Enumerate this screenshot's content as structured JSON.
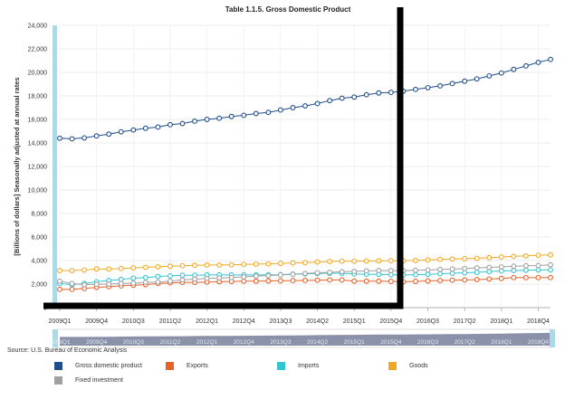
{
  "source": "Source: U.S. Bureau of Economic Analysis",
  "chart_data": {
    "type": "line",
    "title": "Table 1.1.5. Gross Domestic Product",
    "ylabel": "[Billions of dollars] Seasonally adjusted at annual rates",
    "xlabel": "",
    "ylim": [
      0,
      24000
    ],
    "y_ticks": [
      "0",
      "2,000",
      "4,000",
      "6,000",
      "8,000",
      "10,000",
      "12,000",
      "14,000",
      "16,000",
      "18,000",
      "20,000",
      "22,000",
      "24,000"
    ],
    "x_tick_labels": [
      "2009Q1",
      "2009Q4",
      "2010Q3",
      "2011Q2",
      "2012Q1",
      "2012Q4",
      "2013Q3",
      "2014Q2",
      "2015Q1",
      "2015Q4",
      "2016Q3",
      "2017Q2",
      "2018Q1",
      "2018Q4"
    ],
    "grid": true,
    "legend_position": "bottom",
    "navigator_labels": [
      "2009Q1",
      "2009Q4",
      "2010Q3",
      "2011Q2",
      "2012Q1",
      "2012Q4",
      "2013Q3",
      "2014Q2",
      "2015Q1",
      "2015Q4",
      "2016Q3",
      "2017Q2",
      "2018Q1",
      "2018Q4"
    ],
    "categories": [
      "2009Q1",
      "2009Q2",
      "2009Q3",
      "2009Q4",
      "2010Q1",
      "2010Q2",
      "2010Q3",
      "2010Q4",
      "2011Q1",
      "2011Q2",
      "2011Q3",
      "2011Q4",
      "2012Q1",
      "2012Q2",
      "2012Q3",
      "2012Q4",
      "2013Q1",
      "2013Q2",
      "2013Q3",
      "2013Q4",
      "2014Q1",
      "2014Q2",
      "2014Q3",
      "2014Q4",
      "2015Q1",
      "2015Q2",
      "2015Q3",
      "2015Q4",
      "2016Q1",
      "2016Q2",
      "2016Q3",
      "2016Q4",
      "2017Q1",
      "2017Q2",
      "2017Q3",
      "2017Q4",
      "2018Q1",
      "2018Q2",
      "2018Q3",
      "2018Q4",
      "2019Q1"
    ],
    "series": [
      {
        "name": "Gross domestic product",
        "color": "#1f4e8c",
        "values": [
          14400,
          14350,
          14430,
          14600,
          14750,
          14950,
          15100,
          15250,
          15350,
          15550,
          15650,
          15850,
          16000,
          16100,
          16250,
          16350,
          16500,
          16600,
          16800,
          17000,
          17150,
          17350,
          17600,
          17800,
          17900,
          18100,
          18250,
          18300,
          18400,
          18550,
          18700,
          18850,
          19050,
          19250,
          19450,
          19700,
          19950,
          20250,
          20550,
          20850,
          21100
        ]
      },
      {
        "name": "Exports",
        "color": "#e5622a",
        "values": [
          1550,
          1550,
          1620,
          1720,
          1780,
          1850,
          1900,
          1950,
          2050,
          2100,
          2150,
          2150,
          2180,
          2200,
          2220,
          2250,
          2250,
          2270,
          2280,
          2300,
          2310,
          2330,
          2350,
          2350,
          2250,
          2250,
          2250,
          2230,
          2200,
          2230,
          2270,
          2300,
          2330,
          2350,
          2380,
          2430,
          2480,
          2550,
          2550,
          2550,
          2560
        ]
      },
      {
        "name": "Imports",
        "color": "#35c4d4",
        "values": [
          2050,
          1950,
          2050,
          2200,
          2300,
          2400,
          2500,
          2550,
          2650,
          2700,
          2750,
          2750,
          2780,
          2780,
          2780,
          2780,
          2780,
          2790,
          2800,
          2850,
          2860,
          2900,
          2920,
          2920,
          2860,
          2840,
          2830,
          2800,
          2780,
          2800,
          2830,
          2880,
          2920,
          2960,
          3000,
          3060,
          3120,
          3150,
          3180,
          3200,
          3200
        ]
      },
      {
        "name": "Goods",
        "color": "#f2a922",
        "values": [
          3150,
          3150,
          3200,
          3280,
          3280,
          3320,
          3380,
          3420,
          3470,
          3520,
          3560,
          3600,
          3620,
          3620,
          3640,
          3680,
          3700,
          3720,
          3760,
          3800,
          3820,
          3880,
          3920,
          3950,
          3950,
          3960,
          3980,
          3990,
          3990,
          4010,
          4050,
          4100,
          4130,
          4160,
          4190,
          4240,
          4300,
          4360,
          4400,
          4450,
          4480
        ]
      },
      {
        "name": "Fixed investment",
        "color": "#a0a0a0",
        "values": [
          2250,
          2050,
          1950,
          1980,
          2000,
          2050,
          2080,
          2150,
          2180,
          2250,
          2350,
          2420,
          2480,
          2520,
          2560,
          2620,
          2680,
          2720,
          2780,
          2840,
          2900,
          2960,
          3000,
          3050,
          3080,
          3120,
          3150,
          3150,
          3150,
          3170,
          3200,
          3240,
          3280,
          3320,
          3380,
          3420,
          3460,
          3520,
          3560,
          3580,
          3640
        ]
      }
    ]
  }
}
